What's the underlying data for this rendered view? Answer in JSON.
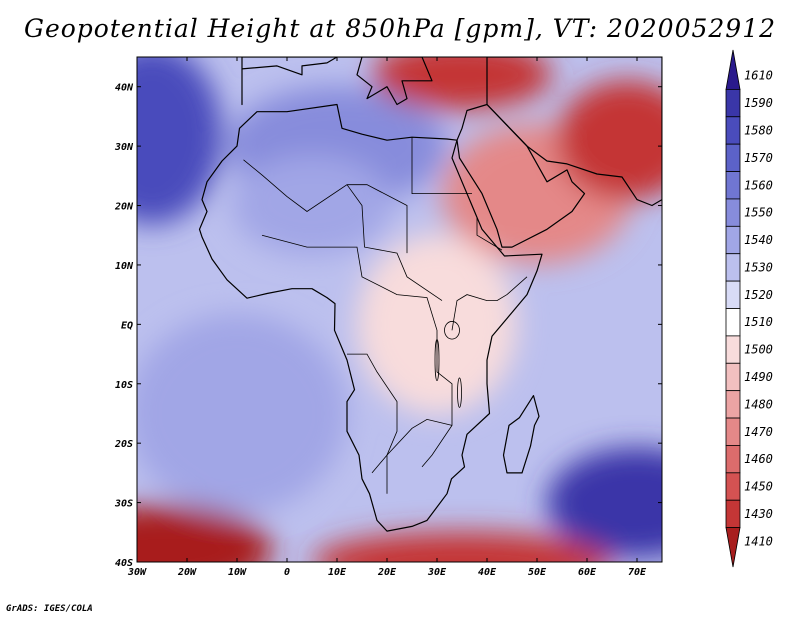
{
  "title": "Geopotential Height at 850hPa [gpm], VT: 2020052912",
  "credit": "GrADS: IGES/COLA",
  "chart_data": {
    "type": "heatmap",
    "variable": "Geopotential Height at 850hPa",
    "units": "gpm",
    "valid_time": "2020052912",
    "projection": "lat-lon",
    "lon_range": [
      -30,
      75
    ],
    "lat_range": [
      -40,
      45
    ],
    "x_ticks": [
      {
        "lon": -30,
        "label": "30W"
      },
      {
        "lon": -20,
        "label": "20W"
      },
      {
        "lon": -10,
        "label": "10W"
      },
      {
        "lon": 0,
        "label": "0"
      },
      {
        "lon": 10,
        "label": "10E"
      },
      {
        "lon": 20,
        "label": "20E"
      },
      {
        "lon": 30,
        "label": "30E"
      },
      {
        "lon": 40,
        "label": "40E"
      },
      {
        "lon": 50,
        "label": "50E"
      },
      {
        "lon": 60,
        "label": "60E"
      },
      {
        "lon": 70,
        "label": "70E"
      }
    ],
    "y_ticks": [
      {
        "lat": 40,
        "label": "40N"
      },
      {
        "lat": 30,
        "label": "30N"
      },
      {
        "lat": 20,
        "label": "20N"
      },
      {
        "lat": 10,
        "label": "10N"
      },
      {
        "lat": 0,
        "label": "EQ"
      },
      {
        "lat": -10,
        "label": "10S"
      },
      {
        "lat": -20,
        "label": "20S"
      },
      {
        "lat": -30,
        "label": "30S"
      },
      {
        "lat": -40,
        "label": "40S"
      }
    ],
    "colorbar": [
      {
        "value": "1610",
        "color": "#2a1a8c"
      },
      {
        "value": "1590",
        "color": "#3a36a8"
      },
      {
        "value": "1580",
        "color": "#4a4cbc"
      },
      {
        "value": "1570",
        "color": "#5c62c8"
      },
      {
        "value": "1560",
        "color": "#7076d2"
      },
      {
        "value": "1550",
        "color": "#878cdc"
      },
      {
        "value": "1540",
        "color": "#a1a6e6"
      },
      {
        "value": "1530",
        "color": "#bcc0ee"
      },
      {
        "value": "1520",
        "color": "#d8dbf6"
      },
      {
        "value": "1510",
        "color": "#ffffff"
      },
      {
        "value": "1500",
        "color": "#f8dcdc"
      },
      {
        "value": "1490",
        "color": "#f2c0c0"
      },
      {
        "value": "1480",
        "color": "#eca4a4"
      },
      {
        "value": "1470",
        "color": "#e48888"
      },
      {
        "value": "1460",
        "color": "#dc6c6c"
      },
      {
        "value": "1450",
        "color": "#d45252"
      },
      {
        "value": "1430",
        "color": "#c43636"
      },
      {
        "value": "1410",
        "color": "#a81e1e"
      }
    ],
    "field_features": [
      {
        "name": "north-atlantic-azores-high",
        "lon": -27,
        "lat": 32,
        "value": 1580
      },
      {
        "name": "north-africa-high",
        "lon": 10,
        "lat": 30,
        "value": 1550
      },
      {
        "name": "sahara-heat-low-edge",
        "lon": 5,
        "lat": 20,
        "value": 1540
      },
      {
        "name": "arabian-heat-low",
        "lon": 50,
        "lat": 22,
        "value": 1470
      },
      {
        "name": "iran-pakistan-low",
        "lon": 68,
        "lat": 31,
        "value": 1430
      },
      {
        "name": "turkey-low",
        "lon": 35,
        "lat": 42,
        "value": 1430
      },
      {
        "name": "south-atlantic-high",
        "lon": -10,
        "lat": -15,
        "value": 1540
      },
      {
        "name": "indian-ocean-high",
        "lon": 70,
        "lat": -30,
        "value": 1590
      },
      {
        "name": "south-atlantic-trough",
        "lon": -25,
        "lat": -38,
        "value": 1410
      },
      {
        "name": "southern-ocean-trough",
        "lon": 35,
        "lat": -40,
        "value": 1430
      },
      {
        "name": "equatorial-east-africa",
        "lon": 30,
        "lat": 0,
        "value": 1500
      }
    ]
  }
}
